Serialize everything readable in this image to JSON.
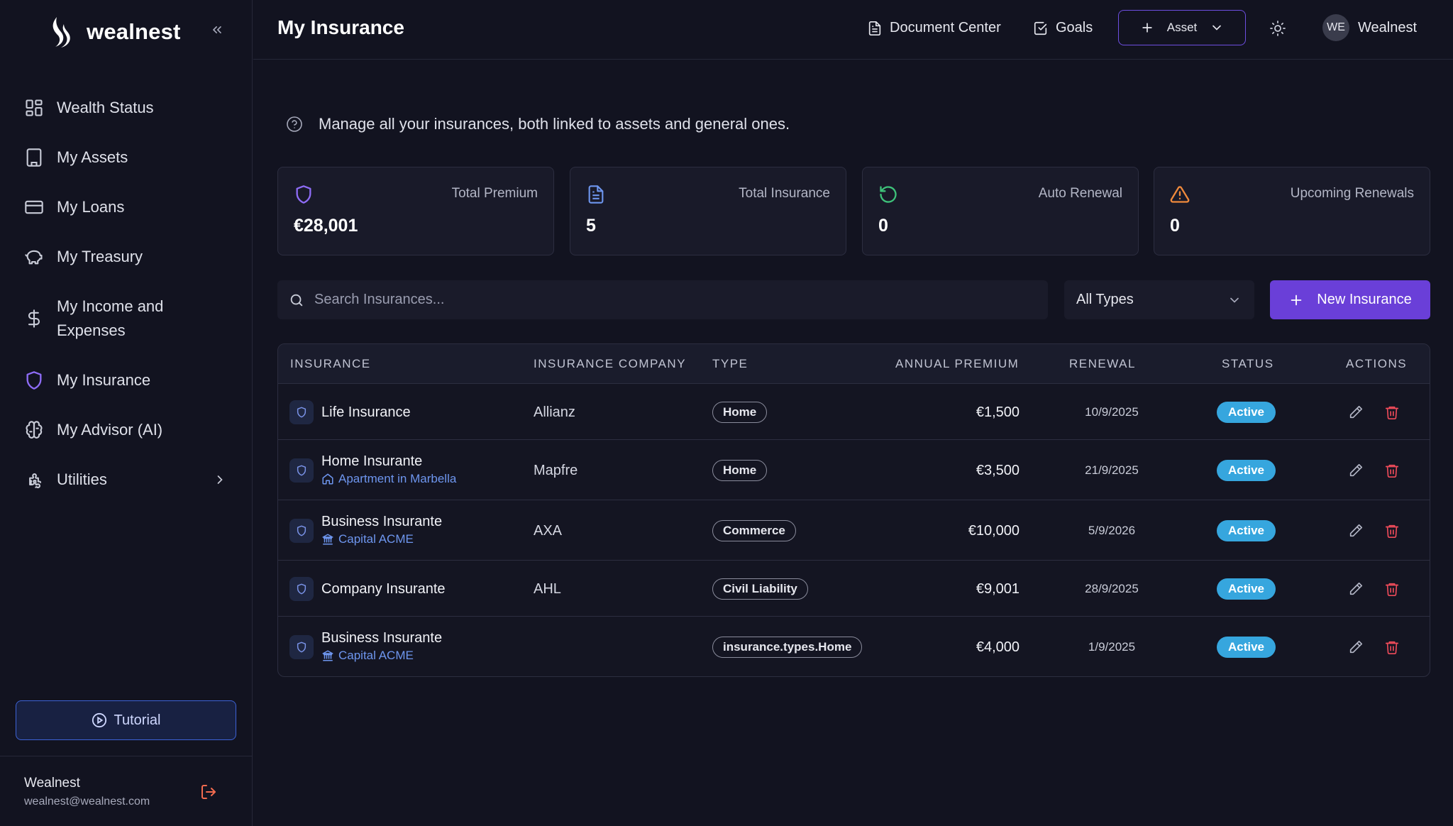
{
  "app": {
    "logo_text": "wealnest",
    "accent": "#6a3fd8"
  },
  "sidebar": {
    "items": [
      {
        "label": "Wealth Status",
        "icon": "dashboard-grid-icon"
      },
      {
        "label": "My Assets",
        "icon": "building-icon"
      },
      {
        "label": "My Loans",
        "icon": "credit-card-icon"
      },
      {
        "label": "My Treasury",
        "icon": "piggy-bank-icon"
      },
      {
        "label": "My Income and Expenses",
        "icon": "dollar-icon"
      },
      {
        "label": "My Insurance",
        "icon": "shield-icon",
        "active": true
      },
      {
        "label": "My Advisor (AI)",
        "icon": "brain-icon"
      },
      {
        "label": "Utilities",
        "icon": "puzzle-icon"
      }
    ],
    "tutorial_label": "Tutorial",
    "user": {
      "name": "Wealnest",
      "email": "wealnest@wealnest.com"
    }
  },
  "header": {
    "title": "My Insurance",
    "document_center": "Document Center",
    "goals": "Goals",
    "asset_button": "Asset",
    "avatar_initials": "WE",
    "profile_name": "Wealnest"
  },
  "main": {
    "help_text": "Manage all your insurances, both linked to assets and general ones.",
    "cards": [
      {
        "label": "Total Premium",
        "value": "€28,001",
        "icon": "shield-outline-icon",
        "color": "#8e6cf6"
      },
      {
        "label": "Total Insurance",
        "value": "5",
        "icon": "document-icon",
        "color": "#6e96ef"
      },
      {
        "label": "Auto Renewal",
        "value": "0",
        "icon": "refresh-icon",
        "color": "#3ec27a"
      },
      {
        "label": "Upcoming Renewals",
        "value": "0",
        "icon": "warning-icon",
        "color": "#f08a3c"
      }
    ],
    "search": {
      "placeholder": "Search Insurances..."
    },
    "type_filter": {
      "selected": "All Types"
    },
    "new_button": "New Insurance"
  },
  "table": {
    "columns": [
      "INSURANCE",
      "INSURANCE COMPANY",
      "TYPE",
      "ANNUAL PREMIUM",
      "RENEWAL",
      "STATUS",
      "ACTIONS"
    ],
    "rows": [
      {
        "name": "Life Insurance",
        "sub": "",
        "sub_icon": "",
        "company": "Allianz",
        "type": "Home",
        "premium": "€1,500",
        "renewal": "10/9/2025",
        "status": "Active"
      },
      {
        "name": "Home Insurante",
        "sub": "Apartment in Marbella",
        "sub_icon": "home-icon",
        "company": "Mapfre",
        "type": "Home",
        "premium": "€3,500",
        "renewal": "21/9/2025",
        "status": "Active"
      },
      {
        "name": "Business Insurante",
        "sub": "Capital ACME",
        "sub_icon": "bank-icon",
        "company": "AXA",
        "type": "Commerce",
        "premium": "€10,000",
        "renewal": "5/9/2026",
        "status": "Active"
      },
      {
        "name": "Company Insurante",
        "sub": "",
        "sub_icon": "",
        "company": "AHL",
        "type": "Civil Liability",
        "premium": "€9,001",
        "renewal": "28/9/2025",
        "status": "Active"
      },
      {
        "name": "Business Insurante",
        "sub": "Capital ACME",
        "sub_icon": "bank-icon",
        "company": "",
        "type": "insurance.types.Home",
        "premium": "€4,000",
        "renewal": "1/9/2025",
        "status": "Active"
      }
    ]
  }
}
